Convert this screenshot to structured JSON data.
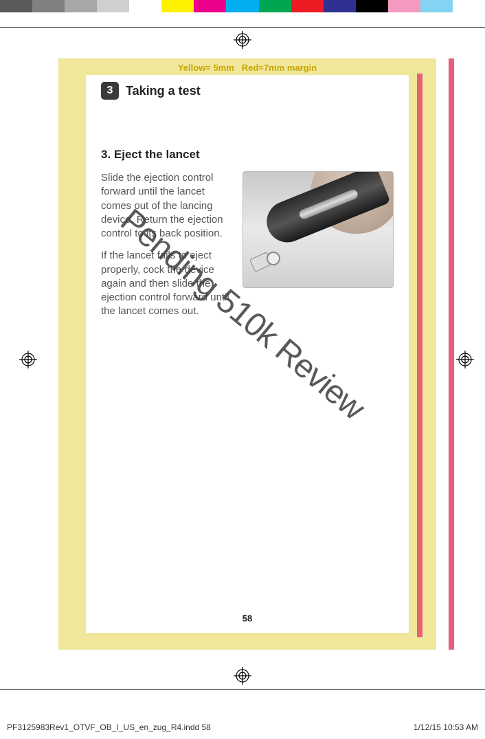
{
  "colorBar": [
    "#5a5a5a",
    "#808080",
    "#a8a8a8",
    "#cfcfcf",
    "#ffffff",
    "#fff200",
    "#ec008c",
    "#00aeef",
    "#00a651",
    "#ed1c24",
    "#2e3192",
    "#000000",
    "#f49ac1",
    "#82d4f2",
    "#ffffff"
  ],
  "marginLabel": {
    "yellow": "Yellow= 5mm",
    "red": "Red=7mm margin"
  },
  "section": {
    "number": "3",
    "title": "Taking a test"
  },
  "step": {
    "title": "3. Eject the lancet",
    "para1": "Slide the ejection control forward until the lancet comes out of the lancing device. Return the ejection control to its back position.",
    "para2": "If the lancet fails to eject properly, cock the device again and then slide the ejection control forward until the lancet comes out."
  },
  "watermark": "Pending 510k Review",
  "pageNumber": "58",
  "footer": {
    "left": "PF3125983Rev1_OTVF_OB_I_US_en_zug_R4.indd   58",
    "right": "1/12/15   10:53 AM"
  },
  "styling": {
    "page_bg": "#f0e79a",
    "content_bg": "#ffffff",
    "red_bar": "#e95f7a",
    "sec_badge_bg": "#3a3a3a",
    "body_text_color": "#555555",
    "heading_color": "#222222",
    "watermark_color": "rgba(60,60,60,0.85)",
    "image_border": "#bbbbbb"
  }
}
